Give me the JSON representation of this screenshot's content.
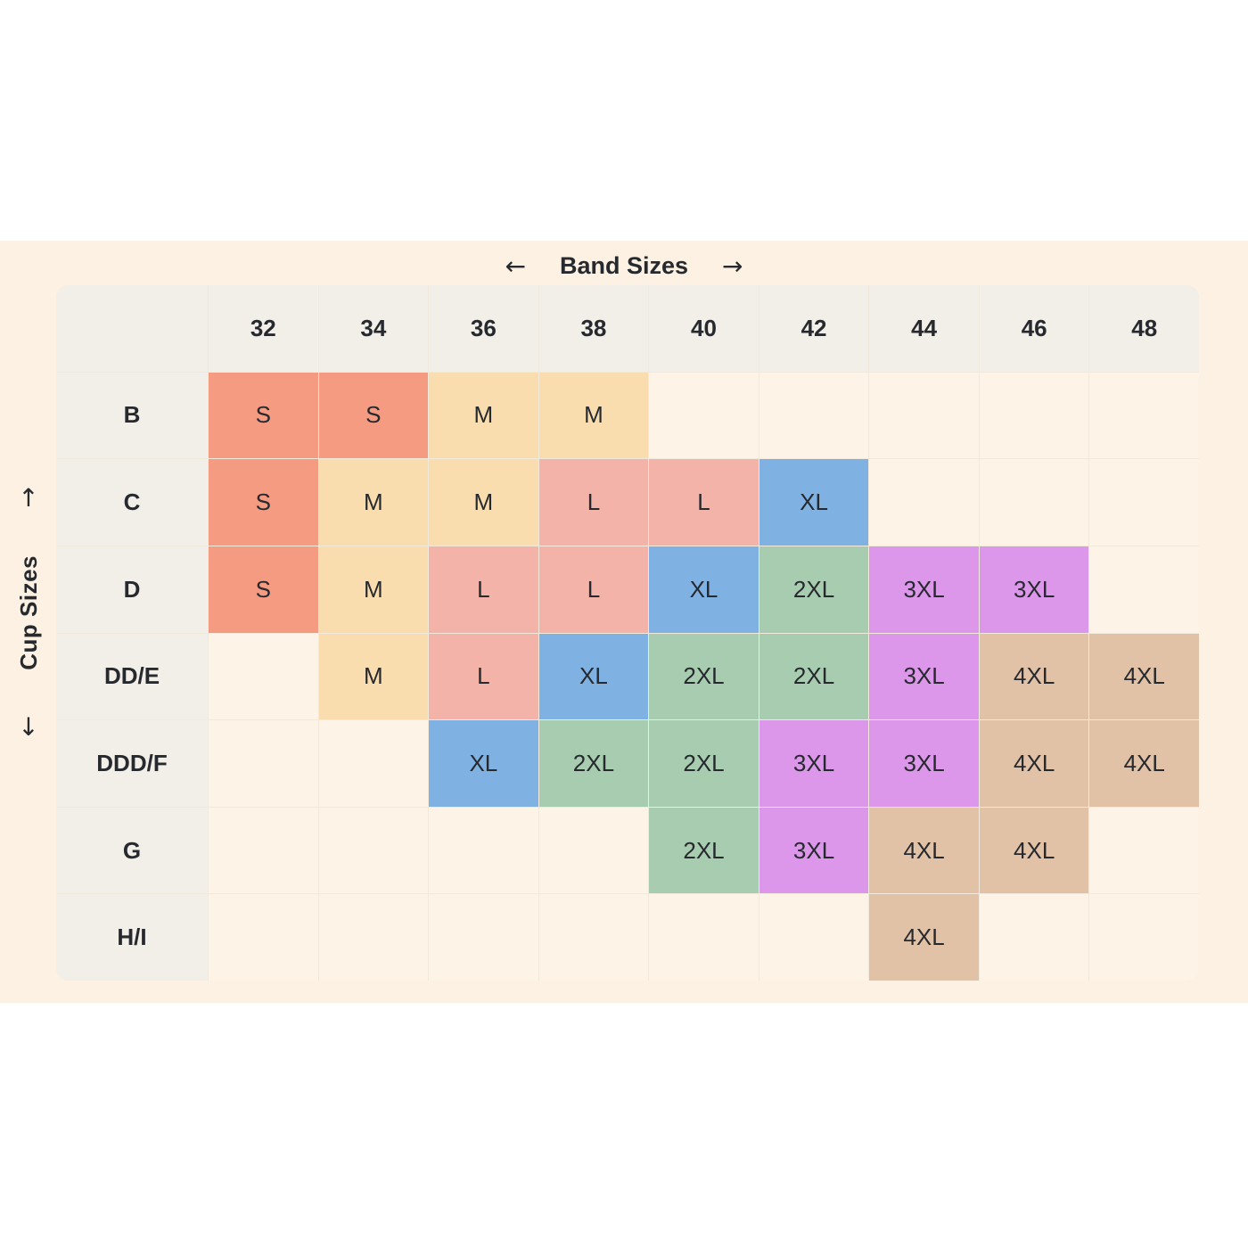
{
  "axes": {
    "band": {
      "label": "Band Sizes",
      "left_arrow": "←",
      "right_arrow": "→"
    },
    "cup": {
      "label": "Cup Sizes",
      "up_arrow": "↑",
      "down_arrow": "↓"
    }
  },
  "chart_data": {
    "type": "table",
    "title": "Bra size chart mapping band and cup sizes to garment sizes",
    "xlabel": "Band Sizes",
    "ylabel": "Cup Sizes",
    "band_sizes": [
      "32",
      "34",
      "36",
      "38",
      "40",
      "42",
      "44",
      "46",
      "48"
    ],
    "cup_sizes": [
      "B",
      "C",
      "D",
      "DD/E",
      "DDD/F",
      "G",
      "H/I"
    ],
    "cells": [
      [
        "S",
        "S",
        "M",
        "M",
        null,
        null,
        null,
        null,
        null
      ],
      [
        "S",
        "M",
        "M",
        "L",
        "L",
        "XL",
        null,
        null,
        null
      ],
      [
        "S",
        "M",
        "L",
        "L",
        "XL",
        "2XL",
        "3XL",
        "3XL",
        null
      ],
      [
        null,
        "M",
        "L",
        "XL",
        "2XL",
        "2XL",
        "3XL",
        "4XL",
        "4XL"
      ],
      [
        null,
        null,
        "XL",
        "2XL",
        "2XL",
        "3XL",
        "3XL",
        "4XL",
        "4XL"
      ],
      [
        null,
        null,
        null,
        null,
        "2XL",
        "3XL",
        "4XL",
        "4XL",
        null
      ],
      [
        null,
        null,
        null,
        null,
        null,
        null,
        "4XL",
        null,
        null
      ]
    ],
    "legend_entries": [
      "S",
      "M",
      "L",
      "XL",
      "2XL",
      "3XL",
      "4XL"
    ]
  },
  "colors": {
    "S": "#f49b82",
    "M": "#f9ddae",
    "L": "#f3b3a9",
    "XL": "#7fb2e3",
    "2XL": "#a7ccaf",
    "3XL": "#dc97ea",
    "4XL": "#e2c2a6",
    "panel_bg": "#fcf1e2",
    "header_bg": "#f2eee8",
    "cell_bg": "#fdf4e7",
    "line": "#f0e9dc",
    "text": "#26292e"
  }
}
